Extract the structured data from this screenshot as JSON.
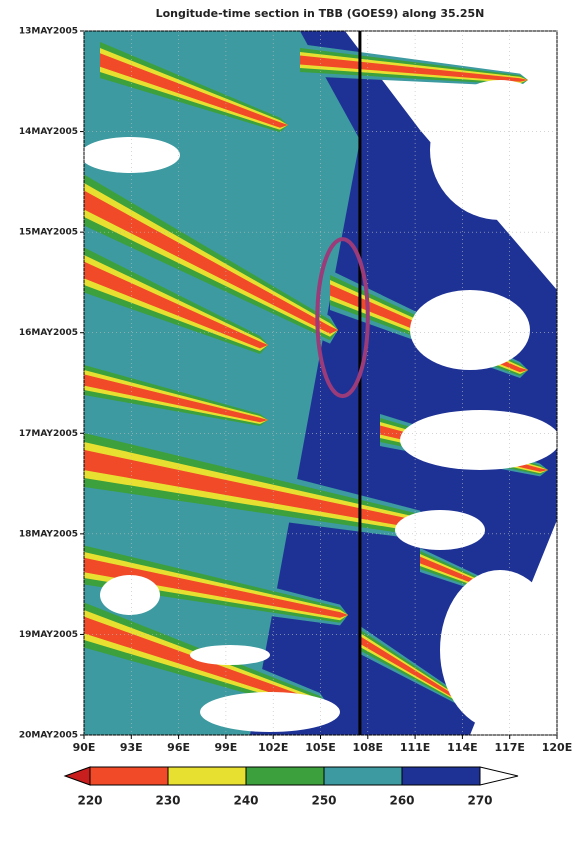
{
  "chart_data": {
    "type": "contour",
    "title": "Longitude-time section in TBB (GOES9) along 35.25N",
    "xlim": [
      90,
      120
    ],
    "xticks": [
      {
        "value": 90,
        "label": "90E"
      },
      {
        "value": 93,
        "label": "93E"
      },
      {
        "value": 96,
        "label": "96E"
      },
      {
        "value": 99,
        "label": "99E"
      },
      {
        "value": 102,
        "label": "102E"
      },
      {
        "value": 105,
        "label": "105E"
      },
      {
        "value": 108,
        "label": "108E"
      },
      {
        "value": 111,
        "label": "111E"
      },
      {
        "value": 114,
        "label": "114E"
      },
      {
        "value": 117,
        "label": "117E"
      },
      {
        "value": 120,
        "label": "120E"
      }
    ],
    "ylim": [
      13,
      20
    ],
    "yticks": [
      {
        "value": 13,
        "label": "13MAY2005"
      },
      {
        "value": 14,
        "label": "14MAY2005"
      },
      {
        "value": 15,
        "label": "15MAY2005"
      },
      {
        "value": 16,
        "label": "16MAY2005"
      },
      {
        "value": 17,
        "label": "17MAY2005"
      },
      {
        "value": 18,
        "label": "18MAY2005"
      },
      {
        "value": 19,
        "label": "19MAY2005"
      },
      {
        "value": 20,
        "label": "20MAY2005"
      }
    ],
    "grid": true,
    "colorbar": {
      "levels": [
        220,
        230,
        240,
        250,
        260,
        270
      ],
      "colors": [
        "#c81e1e",
        "#f04a28",
        "#e8e030",
        "#3ca03c",
        "#3c9aa0",
        "#1e3296",
        "#ffffff"
      ]
    },
    "reference_line": {
      "x": 107.5,
      "color": "#000000"
    },
    "ellipse": {
      "x": 106.4,
      "y": 15.85,
      "rx": 1.6,
      "ry": 0.78,
      "color": "#9b3b7a"
    }
  }
}
